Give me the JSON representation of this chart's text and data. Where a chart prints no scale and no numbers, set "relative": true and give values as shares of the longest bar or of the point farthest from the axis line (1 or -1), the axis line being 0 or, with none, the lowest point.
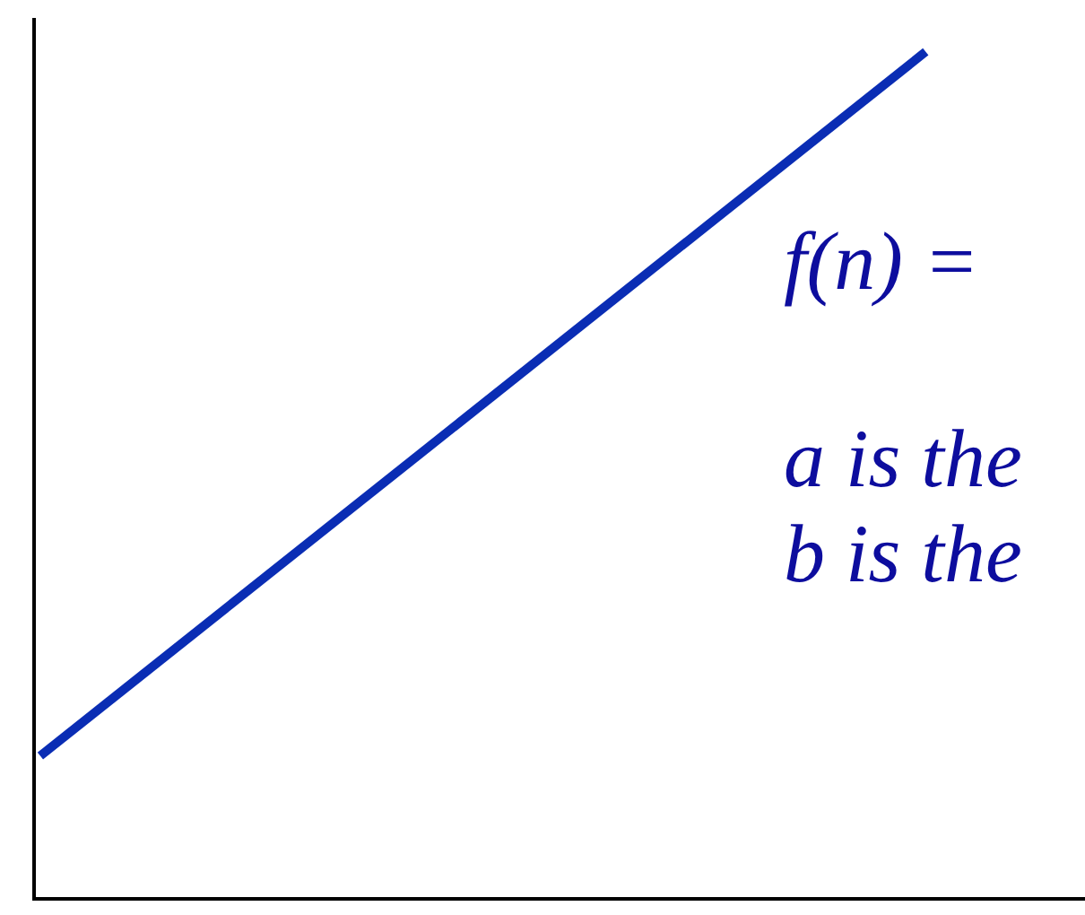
{
  "chart_data": {
    "type": "line",
    "relative": true,
    "categories": [
      null,
      null
    ],
    "series": [
      {
        "color": "#0a2db4",
        "values": [
          0.167,
          1
        ]
      }
    ],
    "annotations": [
      "f(n) =",
      "a is the",
      "b is the"
    ],
    "marker": "none",
    "line_style": "solid"
  }
}
